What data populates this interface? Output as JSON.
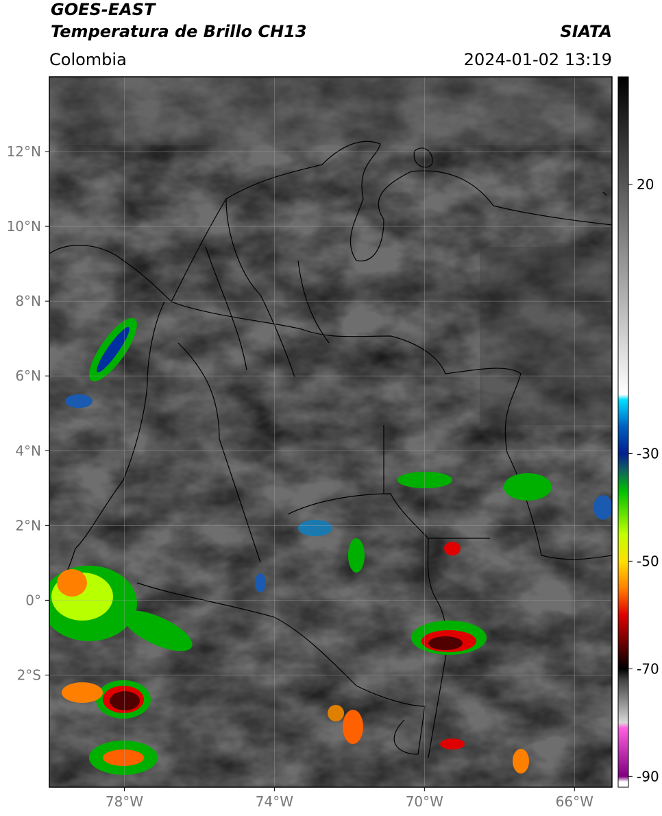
{
  "header": {
    "title": "GOES-EAST",
    "subtitle": "Temperatura de Brillo CH13",
    "region": "Colombia",
    "source": "SIATA",
    "datetime": "2024-01-02 13:19"
  },
  "chart_data": {
    "type": "map",
    "xlim": [
      -80,
      -65
    ],
    "ylim": [
      -5,
      14
    ],
    "xticks": [
      {
        "value": -78,
        "label": "78°W"
      },
      {
        "value": -74,
        "label": "74°W"
      },
      {
        "value": -70,
        "label": "70°W"
      },
      {
        "value": -66,
        "label": "66°W"
      }
    ],
    "yticks": [
      {
        "value": 12,
        "label": "12°N"
      },
      {
        "value": 10,
        "label": "10°N"
      },
      {
        "value": 8,
        "label": "8°N"
      },
      {
        "value": 6,
        "label": "6°N"
      },
      {
        "value": 4,
        "label": "4°N"
      },
      {
        "value": 2,
        "label": "2°N"
      },
      {
        "value": 0,
        "label": "0°"
      },
      {
        "value": -2,
        "label": "2°S"
      }
    ],
    "grid": true,
    "colorbar": {
      "clim": [
        -92,
        40
      ],
      "ticks": [
        20,
        -30,
        -50,
        -70,
        -90
      ],
      "stops": [
        {
          "value": 40,
          "color": "#000000"
        },
        {
          "value": -19,
          "color": "#ffffff"
        },
        {
          "value": -20,
          "color": "#00e0ff"
        },
        {
          "value": -25,
          "color": "#0060c0"
        },
        {
          "value": -30,
          "color": "#001f90"
        },
        {
          "value": -33,
          "color": "#106060"
        },
        {
          "value": -37,
          "color": "#00c000"
        },
        {
          "value": -45,
          "color": "#c0ff00"
        },
        {
          "value": -50,
          "color": "#ffe000"
        },
        {
          "value": -55,
          "color": "#ff8000"
        },
        {
          "value": -60,
          "color": "#e00000"
        },
        {
          "value": -65,
          "color": "#700000"
        },
        {
          "value": -70,
          "color": "#000000"
        },
        {
          "value": -72,
          "color": "#404040"
        },
        {
          "value": -80,
          "color": "#d8d8d8"
        },
        {
          "value": -81,
          "color": "#ff60e0"
        },
        {
          "value": -90,
          "color": "#800080"
        },
        {
          "value": -91,
          "color": "#ffffff"
        },
        {
          "value": -92,
          "color": "#ffffff"
        }
      ]
    }
  }
}
